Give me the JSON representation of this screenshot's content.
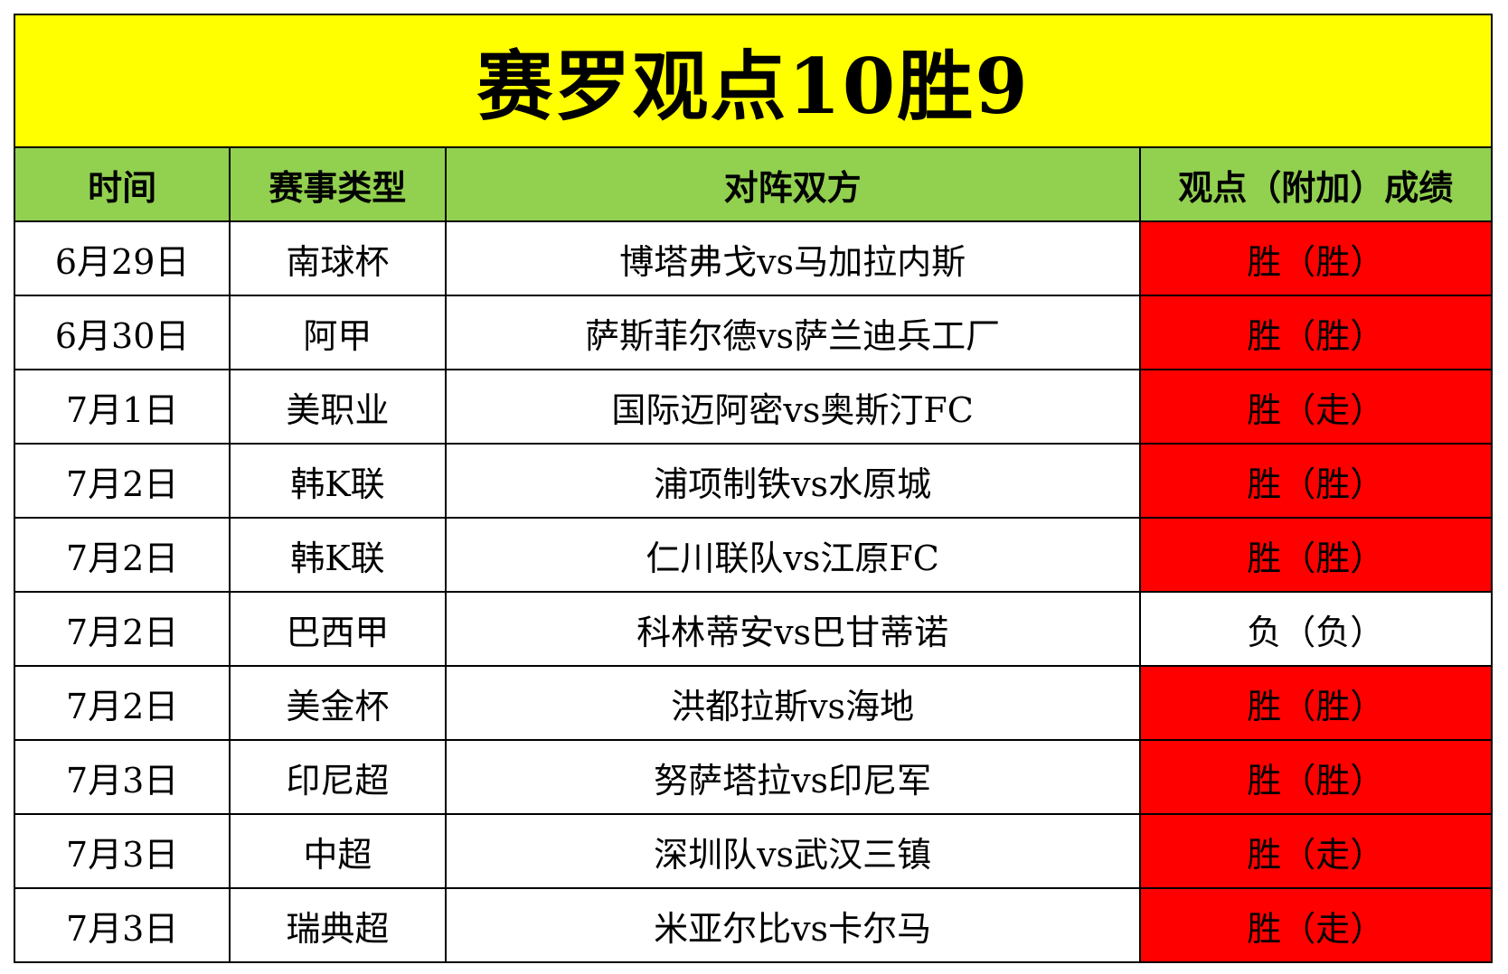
{
  "title": "赛罗观点10胜9",
  "headers": {
    "date": "时间",
    "league": "赛事类型",
    "match": "对阵双方",
    "result": "观点（附加）成绩"
  },
  "colors": {
    "title_bg": "#ffff00",
    "header_bg": "#92d050",
    "win_bg": "#ff0000",
    "loss_bg": "#ffffff"
  },
  "rows": [
    {
      "date": "6月29日",
      "league": "南球杯",
      "match": "博塔弗戈vs马加拉内斯",
      "result": "胜（胜）",
      "status": "win"
    },
    {
      "date": "6月30日",
      "league": "阿甲",
      "match": "萨斯菲尔德vs萨兰迪兵工厂",
      "result": "胜（胜）",
      "status": "win"
    },
    {
      "date": "7月1日",
      "league": "美职业",
      "match": "国际迈阿密vs奥斯汀FC",
      "result": "胜（走）",
      "status": "win"
    },
    {
      "date": "7月2日",
      "league": "韩K联",
      "match": "浦项制铁vs水原城",
      "result": "胜（胜）",
      "status": "win"
    },
    {
      "date": "7月2日",
      "league": "韩K联",
      "match": "仁川联队vs江原FC",
      "result": "胜（胜）",
      "status": "win"
    },
    {
      "date": "7月2日",
      "league": "巴西甲",
      "match": "科林蒂安vs巴甘蒂诺",
      "result": "负（负）",
      "status": "loss"
    },
    {
      "date": "7月2日",
      "league": "美金杯",
      "match": "洪都拉斯vs海地",
      "result": "胜（胜）",
      "status": "win"
    },
    {
      "date": "7月3日",
      "league": "印尼超",
      "match": "努萨塔拉vs印尼军",
      "result": "胜（胜）",
      "status": "win"
    },
    {
      "date": "7月3日",
      "league": "中超",
      "match": "深圳队vs武汉三镇",
      "result": "胜（走）",
      "status": "win"
    },
    {
      "date": "7月3日",
      "league": "瑞典超",
      "match": "米亚尔比vs卡尔马",
      "result": "胜（走）",
      "status": "win"
    }
  ]
}
